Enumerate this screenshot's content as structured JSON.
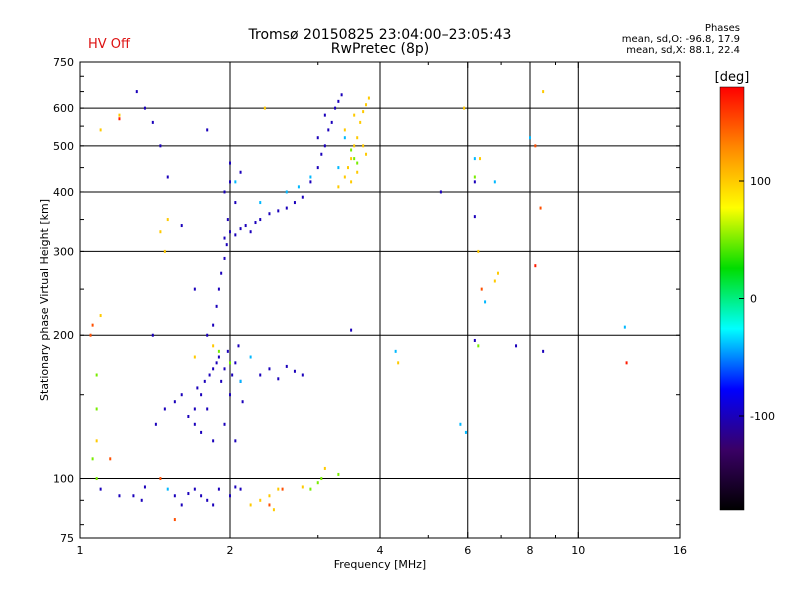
{
  "header": {
    "title": "Tromsø 20150825 23:04:00–23:05:43",
    "subtitle": "RwPretec (8p)",
    "hv_status": "HV Off",
    "hv_color": "#dd1111",
    "phases_heading": "Phases",
    "phases_o": "mean, sd,O: -96.8, 17.9",
    "phases_x": "mean, sd,X:  88.1, 22.4"
  },
  "chart_data": {
    "type": "scatter",
    "title": "Tromsø 20150825 23:04:00–23:05:43",
    "subtitle": "RwPretec (8p)",
    "xlabel": "Frequency [MHz]",
    "ylabel": "Stationary phase Virtual Height [km]",
    "x_scale": "log",
    "y_scale": "log",
    "xlim": [
      1,
      16
    ],
    "ylim": [
      75,
      750
    ],
    "x_ticks": [
      1,
      2,
      4,
      6,
      8,
      10,
      16
    ],
    "x_tick_labels": [
      "1",
      "2",
      "4",
      "6",
      "8",
      "10",
      "16"
    ],
    "x_grid": [
      2,
      4,
      6,
      8,
      10
    ],
    "y_ticks": [
      75,
      100,
      200,
      300,
      400,
      500,
      600,
      750
    ],
    "y_tick_labels": [
      "75",
      "100",
      "200",
      "300",
      "400",
      "500",
      "600",
      "750"
    ],
    "y_grid": [
      100,
      200,
      300,
      400,
      500,
      600
    ],
    "grid": true,
    "colorbar": {
      "label": "[deg]",
      "range": [
        -180,
        180
      ],
      "ticks": [
        100,
        0,
        -100
      ],
      "tick_labels": [
        "100",
        "0",
        "-100"
      ],
      "colormap": [
        "#000000",
        "#3a0066",
        "#0000ff",
        "#00ffff",
        "#00dd00",
        "#ffff00",
        "#ff8800",
        "#ff0000"
      ]
    },
    "series": [
      {
        "phase_deg": -100,
        "points": [
          [
            1.1,
            95
          ],
          [
            1.2,
            92
          ],
          [
            1.28,
            92
          ],
          [
            1.33,
            90
          ],
          [
            1.35,
            96
          ],
          [
            1.55,
            92
          ],
          [
            1.6,
            88
          ],
          [
            1.65,
            93
          ],
          [
            1.7,
            95
          ],
          [
            1.75,
            92
          ],
          [
            1.8,
            90
          ],
          [
            1.85,
            88
          ],
          [
            1.9,
            95
          ],
          [
            2.0,
            92
          ],
          [
            2.05,
            96
          ],
          [
            2.1,
            95
          ],
          [
            1.42,
            130
          ],
          [
            1.48,
            140
          ],
          [
            1.55,
            145
          ],
          [
            1.6,
            150
          ],
          [
            1.65,
            135
          ],
          [
            1.7,
            140
          ],
          [
            1.72,
            155
          ],
          [
            1.75,
            150
          ],
          [
            1.78,
            160
          ],
          [
            1.8,
            140
          ],
          [
            1.82,
            165
          ],
          [
            1.85,
            170
          ],
          [
            1.88,
            175
          ],
          [
            1.9,
            180
          ],
          [
            1.92,
            160
          ],
          [
            1.95,
            170
          ],
          [
            1.98,
            185
          ],
          [
            2.0,
            150
          ],
          [
            2.02,
            165
          ],
          [
            2.05,
            175
          ],
          [
            2.08,
            190
          ],
          [
            2.1,
            160
          ],
          [
            2.12,
            145
          ],
          [
            1.7,
            130
          ],
          [
            1.75,
            125
          ],
          [
            1.85,
            120
          ],
          [
            1.95,
            130
          ],
          [
            2.05,
            120
          ],
          [
            1.8,
            200
          ],
          [
            1.85,
            210
          ],
          [
            1.88,
            230
          ],
          [
            1.9,
            250
          ],
          [
            1.92,
            270
          ],
          [
            1.95,
            290
          ],
          [
            1.97,
            310
          ],
          [
            2.3,
            165
          ],
          [
            2.4,
            170
          ],
          [
            2.5,
            162
          ],
          [
            2.6,
            172
          ],
          [
            2.7,
            168
          ],
          [
            2.8,
            165
          ],
          [
            1.95,
            320
          ],
          [
            2.0,
            330
          ],
          [
            2.05,
            325
          ],
          [
            2.1,
            335
          ],
          [
            2.15,
            340
          ],
          [
            2.2,
            330
          ],
          [
            2.25,
            345
          ],
          [
            2.3,
            350
          ],
          [
            2.4,
            360
          ],
          [
            2.5,
            365
          ],
          [
            2.6,
            370
          ],
          [
            2.7,
            380
          ],
          [
            2.8,
            390
          ],
          [
            1.95,
            400
          ],
          [
            2.0,
            420
          ],
          [
            2.05,
            380
          ],
          [
            2.1,
            440
          ],
          [
            2.0,
            460
          ],
          [
            1.98,
            350
          ],
          [
            2.9,
            420
          ],
          [
            3.0,
            450
          ],
          [
            3.05,
            480
          ],
          [
            3.1,
            500
          ],
          [
            3.15,
            540
          ],
          [
            3.2,
            560
          ],
          [
            3.25,
            600
          ],
          [
            3.3,
            620
          ],
          [
            3.35,
            640
          ],
          [
            3.1,
            580
          ],
          [
            3.0,
            520
          ],
          [
            1.3,
            650
          ],
          [
            1.35,
            600
          ],
          [
            1.4,
            560
          ],
          [
            1.45,
            500
          ],
          [
            1.5,
            430
          ],
          [
            1.6,
            340
          ],
          [
            1.7,
            250
          ],
          [
            1.4,
            200
          ],
          [
            1.8,
            540
          ],
          [
            3.5,
            205
          ],
          [
            5.3,
            400
          ],
          [
            6.2,
            420
          ],
          [
            6.2,
            355
          ],
          [
            6.2,
            195
          ],
          [
            7.5,
            190
          ],
          [
            8.5,
            185
          ]
        ]
      },
      {
        "phase_deg": -40,
        "points": [
          [
            1.5,
            95
          ],
          [
            2.1,
            160
          ],
          [
            2.2,
            180
          ],
          [
            2.05,
            420
          ],
          [
            2.3,
            380
          ],
          [
            2.6,
            400
          ],
          [
            2.75,
            410
          ],
          [
            2.9,
            430
          ],
          [
            3.3,
            450
          ],
          [
            3.4,
            520
          ],
          [
            4.3,
            185
          ],
          [
            5.8,
            130
          ],
          [
            5.95,
            125
          ],
          [
            6.5,
            235
          ],
          [
            6.8,
            420
          ],
          [
            6.2,
            470
          ],
          [
            8.0,
            520
          ],
          [
            12.4,
            208
          ]
        ]
      },
      {
        "phase_deg": 50,
        "points": [
          [
            1.08,
            165
          ],
          [
            1.08,
            140
          ],
          [
            1.08,
            100
          ],
          [
            1.06,
            110
          ],
          [
            1.9,
            185
          ],
          [
            2.0,
            175
          ],
          [
            2.9,
            95
          ],
          [
            3.0,
            98
          ],
          [
            3.05,
            100
          ],
          [
            3.3,
            102
          ],
          [
            3.5,
            490
          ],
          [
            3.55,
            470
          ],
          [
            3.6,
            460
          ],
          [
            6.3,
            190
          ],
          [
            6.2,
            430
          ]
        ]
      },
      {
        "phase_deg": 100,
        "points": [
          [
            1.1,
            220
          ],
          [
            1.2,
            580
          ],
          [
            1.1,
            540
          ],
          [
            1.45,
            330
          ],
          [
            1.5,
            350
          ],
          [
            1.48,
            300
          ],
          [
            1.08,
            120
          ],
          [
            1.7,
            180
          ],
          [
            1.85,
            190
          ],
          [
            2.2,
            88
          ],
          [
            2.3,
            90
          ],
          [
            2.4,
            92
          ],
          [
            2.5,
            95
          ],
          [
            2.45,
            86
          ],
          [
            2.8,
            96
          ],
          [
            3.1,
            105
          ],
          [
            3.3,
            410
          ],
          [
            3.4,
            430
          ],
          [
            3.45,
            450
          ],
          [
            3.5,
            470
          ],
          [
            3.55,
            500
          ],
          [
            3.6,
            520
          ],
          [
            3.65,
            560
          ],
          [
            3.7,
            590
          ],
          [
            3.75,
            610
          ],
          [
            3.8,
            630
          ],
          [
            3.4,
            540
          ],
          [
            3.55,
            580
          ],
          [
            3.7,
            500
          ],
          [
            3.75,
            480
          ],
          [
            3.6,
            440
          ],
          [
            3.5,
            420
          ],
          [
            4.35,
            175
          ],
          [
            5.9,
            600
          ],
          [
            6.3,
            300
          ],
          [
            6.35,
            470
          ],
          [
            6.8,
            260
          ],
          [
            6.9,
            270
          ],
          [
            8.5,
            650
          ],
          [
            2.35,
            600
          ]
        ]
      },
      {
        "phase_deg": 150,
        "points": [
          [
            1.05,
            200
          ],
          [
            1.06,
            210
          ],
          [
            1.15,
            110
          ],
          [
            1.45,
            100
          ],
          [
            1.55,
            82
          ],
          [
            2.4,
            88
          ],
          [
            2.55,
            95
          ],
          [
            6.4,
            250
          ],
          [
            8.2,
            500
          ],
          [
            8.4,
            370
          ]
        ]
      },
      {
        "phase_deg": 170,
        "points": [
          [
            8.2,
            280
          ],
          [
            12.5,
            175
          ],
          [
            1.2,
            570
          ]
        ]
      }
    ]
  }
}
